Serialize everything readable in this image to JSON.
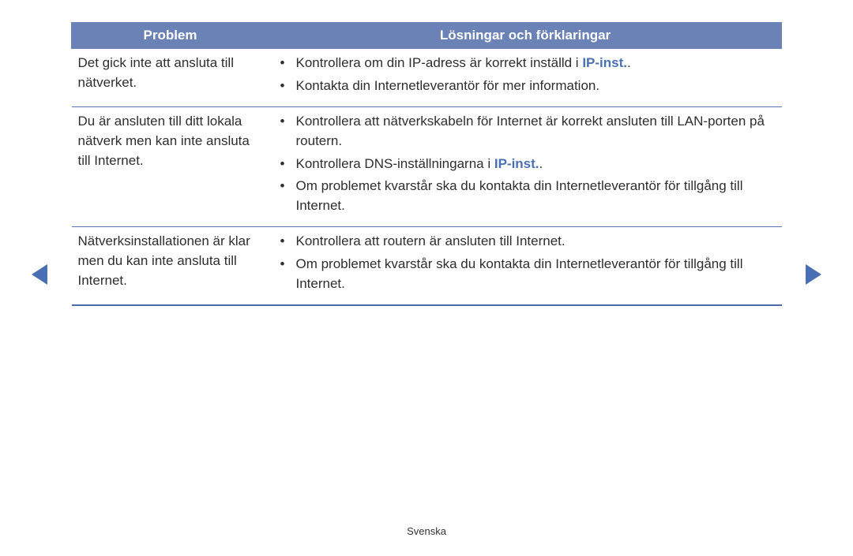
{
  "colors": {
    "header_bg": "#6a82b6",
    "header_text": "#ffffff",
    "border": "#5a74ac",
    "body_text": "#2e2e2e",
    "link": "#4b6fb4",
    "page_bg": "#ffffff"
  },
  "table": {
    "headers": {
      "problem": "Problem",
      "solutions": "Lösningar och förklaringar"
    },
    "rows": [
      {
        "problem": "Det gick inte att ansluta till nätverket.",
        "solutions": [
          {
            "pre": "Kontrollera om din IP-adress är korrekt inställd i ",
            "link": "IP-inst.",
            "post": "."
          },
          {
            "pre": "Kontakta din Internetleverantör för mer information.",
            "link": "",
            "post": ""
          }
        ]
      },
      {
        "problem": "Du är ansluten till ditt lokala nätverk men kan inte ansluta till Internet.",
        "solutions": [
          {
            "pre": "Kontrollera att nätverkskabeln för Internet är korrekt ansluten till LAN-porten på routern.",
            "link": "",
            "post": ""
          },
          {
            "pre": "Kontrollera DNS-inställningarna i ",
            "link": "IP-inst.",
            "post": "."
          },
          {
            "pre": "Om problemet kvarstår ska du kontakta din Internetleverantör för tillgång till Internet.",
            "link": "",
            "post": ""
          }
        ]
      },
      {
        "problem": "Nätverksinstallationen är klar men du kan inte ansluta till Internet.",
        "solutions": [
          {
            "pre": "Kontrollera att routern är ansluten till Internet.",
            "link": "",
            "post": ""
          },
          {
            "pre": "Om problemet kvarstår ska du kontakta din Internetleverantör för tillgång till Internet.",
            "link": "",
            "post": ""
          }
        ]
      }
    ]
  },
  "footer": "Svenska"
}
